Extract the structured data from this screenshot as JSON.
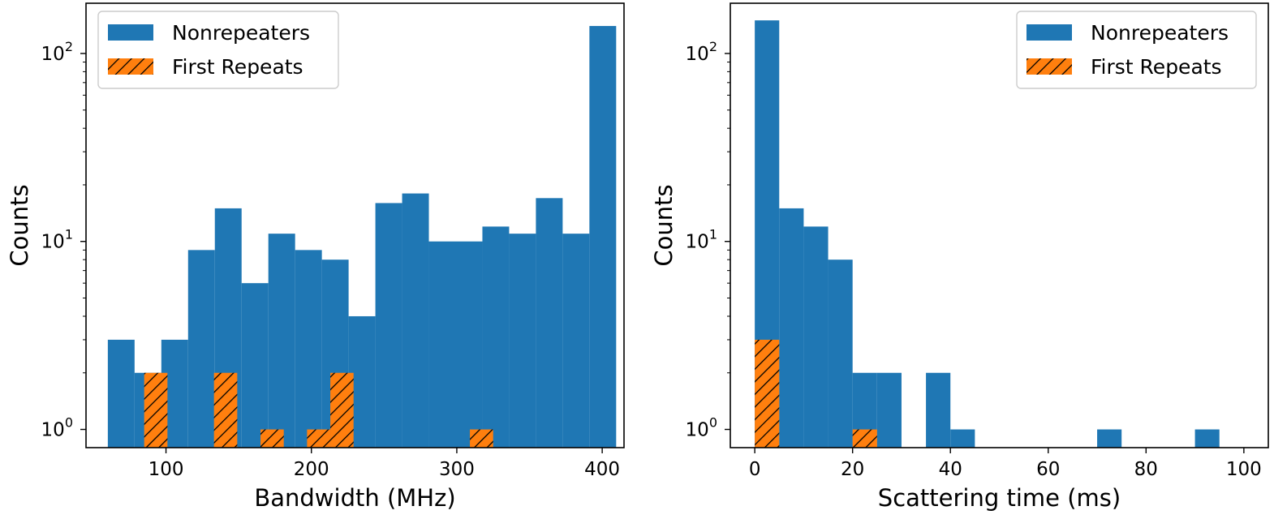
{
  "chart_data": [
    {
      "type": "bar",
      "title": "",
      "xlabel": "Bandwidth (MHz)",
      "ylabel": "Counts",
      "yscale": "log",
      "xlim": [
        45,
        415
      ],
      "ylim": [
        0.8,
        185
      ],
      "xticks": [
        100,
        200,
        300,
        400
      ],
      "xtick_labels": [
        "100",
        "200",
        "300",
        "400"
      ],
      "ytick_labels": [
        {
          "value": 1,
          "base": "10",
          "exp": "0"
        },
        {
          "value": 10,
          "base": "10",
          "exp": "1"
        },
        {
          "value": 100,
          "base": "10",
          "exp": "2"
        }
      ],
      "legend": {
        "placement": "top-left",
        "entries": [
          "Nonrepeaters",
          "First Repeats"
        ]
      },
      "colors": {
        "nonrepeaters": "#1f77b4",
        "repeats": "#ff7f0e"
      },
      "series": [
        {
          "name": "Nonrepeaters",
          "style": "solid",
          "bins": [
            {
              "x0": 60,
              "x1": 78.4,
              "count": 3
            },
            {
              "x0": 78.4,
              "x1": 96.8,
              "count": 2
            },
            {
              "x0": 96.8,
              "x1": 115.2,
              "count": 3
            },
            {
              "x0": 115.2,
              "x1": 133.6,
              "count": 9
            },
            {
              "x0": 133.6,
              "x1": 152,
              "count": 15
            },
            {
              "x0": 152,
              "x1": 170.4,
              "count": 6
            },
            {
              "x0": 170.4,
              "x1": 188.8,
              "count": 11
            },
            {
              "x0": 188.8,
              "x1": 207.2,
              "count": 9
            },
            {
              "x0": 207.2,
              "x1": 225.6,
              "count": 8
            },
            {
              "x0": 225.6,
              "x1": 244,
              "count": 4
            },
            {
              "x0": 244,
              "x1": 262.4,
              "count": 16
            },
            {
              "x0": 262.4,
              "x1": 280.8,
              "count": 18
            },
            {
              "x0": 280.8,
              "x1": 299.2,
              "count": 10
            },
            {
              "x0": 299.2,
              "x1": 317.6,
              "count": 10
            },
            {
              "x0": 317.6,
              "x1": 336,
              "count": 12
            },
            {
              "x0": 336,
              "x1": 354.4,
              "count": 11
            },
            {
              "x0": 354.4,
              "x1": 372.8,
              "count": 17
            },
            {
              "x0": 372.8,
              "x1": 391.2,
              "count": 11
            },
            {
              "x0": 391.2,
              "x1": 409.6,
              "count": 140
            }
          ]
        },
        {
          "name": "First Repeats",
          "style": "hatched",
          "bins": [
            {
              "x0": 85,
              "x1": 101,
              "count": 2
            },
            {
              "x0": 133,
              "x1": 149,
              "count": 2
            },
            {
              "x0": 165,
              "x1": 181,
              "count": 1
            },
            {
              "x0": 197,
              "x1": 213,
              "count": 1
            },
            {
              "x0": 213,
              "x1": 229,
              "count": 2
            },
            {
              "x0": 309,
              "x1": 325,
              "count": 1
            }
          ]
        }
      ]
    },
    {
      "type": "bar",
      "title": "",
      "xlabel": "Scattering time (ms)",
      "ylabel": "Counts",
      "yscale": "log",
      "xlim": [
        -5,
        105
      ],
      "ylim": [
        0.8,
        185
      ],
      "xticks": [
        0,
        20,
        40,
        60,
        80,
        100
      ],
      "xtick_labels": [
        "0",
        "20",
        "40",
        "60",
        "80",
        "100"
      ],
      "ytick_labels": [
        {
          "value": 1,
          "base": "10",
          "exp": "0"
        },
        {
          "value": 10,
          "base": "10",
          "exp": "1"
        },
        {
          "value": 100,
          "base": "10",
          "exp": "2"
        }
      ],
      "legend": {
        "placement": "top-right",
        "entries": [
          "Nonrepeaters",
          "First Repeats"
        ]
      },
      "colors": {
        "nonrepeaters": "#1f77b4",
        "repeats": "#ff7f0e"
      },
      "series": [
        {
          "name": "Nonrepeaters",
          "style": "solid",
          "bins": [
            {
              "x0": 0,
              "x1": 5,
              "count": 150
            },
            {
              "x0": 5,
              "x1": 10,
              "count": 15
            },
            {
              "x0": 10,
              "x1": 15,
              "count": 12
            },
            {
              "x0": 15,
              "x1": 20,
              "count": 8
            },
            {
              "x0": 20,
              "x1": 25,
              "count": 2
            },
            {
              "x0": 25,
              "x1": 30,
              "count": 2
            },
            {
              "x0": 35,
              "x1": 40,
              "count": 2
            },
            {
              "x0": 40,
              "x1": 45,
              "count": 1
            },
            {
              "x0": 70,
              "x1": 75,
              "count": 1
            },
            {
              "x0": 90,
              "x1": 95,
              "count": 1
            }
          ]
        },
        {
          "name": "First Repeats",
          "style": "hatched",
          "bins": [
            {
              "x0": 0,
              "x1": 5,
              "count": 3
            },
            {
              "x0": 20,
              "x1": 25,
              "count": 1
            }
          ]
        }
      ]
    }
  ]
}
